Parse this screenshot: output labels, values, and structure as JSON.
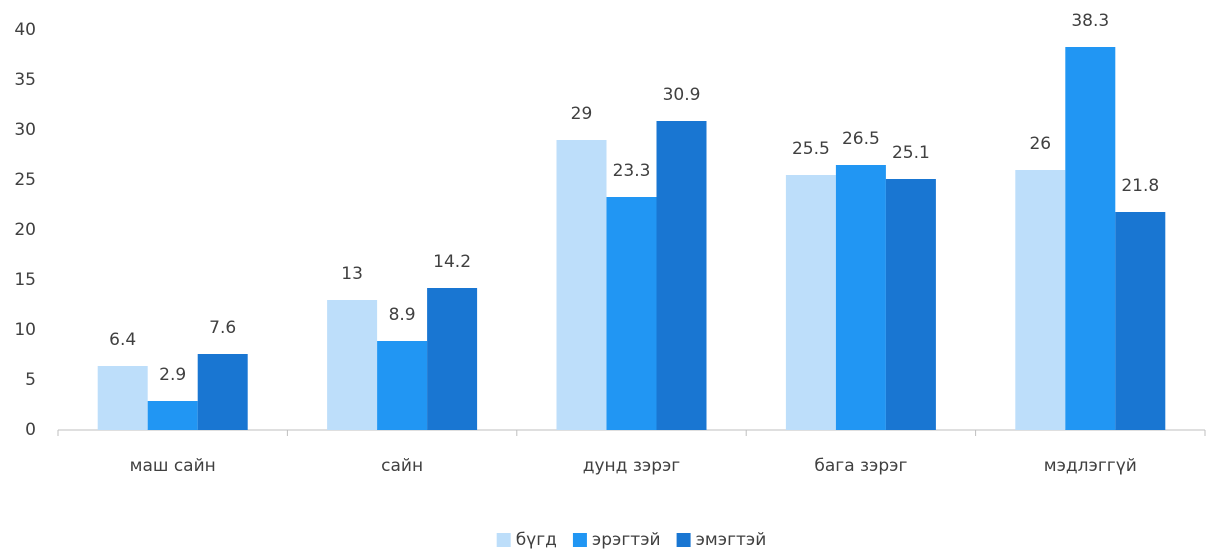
{
  "chart_data": {
    "type": "bar",
    "categories": [
      "маш сайн",
      "сайн",
      "дунд зэрэг",
      "бага зэрэг",
      "мэдлэггүй"
    ],
    "series": [
      {
        "name": "бүгд",
        "color": "#bddefa",
        "values": [
          6.4,
          13,
          29,
          25.5,
          26
        ]
      },
      {
        "name": "эрэгтэй",
        "color": "#2196f3",
        "values": [
          2.9,
          8.9,
          23.3,
          26.5,
          38.3
        ]
      },
      {
        "name": "эмэгтэй",
        "color": "#1976d2",
        "values": [
          7.6,
          14.2,
          30.9,
          25.1,
          21.8
        ]
      }
    ],
    "ylim": [
      0,
      40
    ],
    "yticks": [
      0,
      5,
      10,
      15,
      20,
      25,
      30,
      35,
      40
    ],
    "grid": false,
    "legend": "bottom"
  }
}
